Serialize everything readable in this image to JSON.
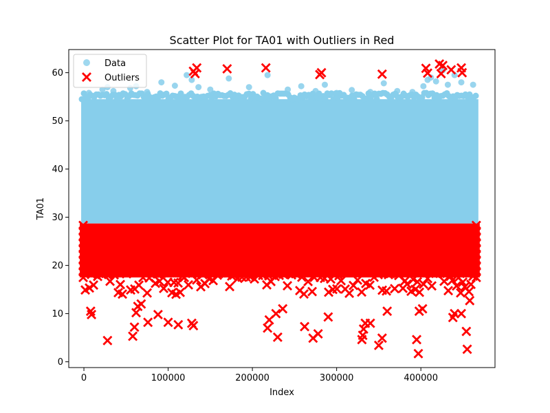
{
  "chart_data": {
    "type": "scatter",
    "title": "Scatter Plot for TA01 with Outliers in Red",
    "xlabel": "Index",
    "ylabel": "TA01",
    "xlim": [
      -18000,
      488000
    ],
    "ylim": [
      -1.2,
      64.8
    ],
    "x_ticks": [
      0,
      100000,
      200000,
      300000,
      400000
    ],
    "x_tick_labels": [
      "0",
      "100000",
      "200000",
      "300000",
      "400000"
    ],
    "y_ticks": [
      0,
      10,
      20,
      30,
      40,
      50,
      60
    ],
    "y_tick_labels": [
      "0",
      "10",
      "20",
      "30",
      "40",
      "50",
      "60"
    ],
    "grid": false,
    "legend_position": "upper-left",
    "series": [
      {
        "name": "Data",
        "marker": "circle",
        "color": "#87CEEB",
        "x_range": [
          0,
          465000
        ],
        "band": [
          28.7,
          54.5
        ],
        "sparse_points": [
          [
            6000,
            55.8
          ],
          [
            22000,
            56.5
          ],
          [
            28000,
            57.0
          ],
          [
            35000,
            56.2
          ],
          [
            55000,
            56.8
          ],
          [
            62000,
            57.2
          ],
          [
            75000,
            56.0
          ],
          [
            92000,
            58.0
          ],
          [
            108000,
            57.3
          ],
          [
            122000,
            59.5
          ],
          [
            128000,
            58.5
          ],
          [
            136000,
            57.0
          ],
          [
            150000,
            56.5
          ],
          [
            172000,
            58.8
          ],
          [
            196000,
            57.0
          ],
          [
            218000,
            59.5
          ],
          [
            242000,
            56.5
          ],
          [
            258000,
            57.2
          ],
          [
            275000,
            56.2
          ],
          [
            286000,
            57.5
          ],
          [
            300000,
            55.8
          ],
          [
            318000,
            56.4
          ],
          [
            340000,
            56.0
          ],
          [
            356000,
            57.8
          ],
          [
            372000,
            56.2
          ],
          [
            390000,
            56.0
          ],
          [
            403000,
            57.2
          ],
          [
            408000,
            58.5
          ],
          [
            412000,
            59.0
          ],
          [
            418000,
            58.2
          ],
          [
            426000,
            60.5
          ],
          [
            432000,
            57.5
          ],
          [
            440000,
            59.5
          ],
          [
            448000,
            58.0
          ],
          [
            462000,
            57.5
          ]
        ]
      },
      {
        "name": "Outliers",
        "marker": "x",
        "color": "#FF0000",
        "x_range": [
          0,
          465000
        ],
        "band": [
          13.5,
          28.7
        ],
        "sparse_points": [
          [
            8000,
            10.5
          ],
          [
            9000,
            9.8
          ],
          [
            28000,
            4.4
          ],
          [
            58000,
            5.3
          ],
          [
            60000,
            7.2
          ],
          [
            62000,
            10.2
          ],
          [
            64000,
            11.5
          ],
          [
            68000,
            12.0
          ],
          [
            76000,
            8.2
          ],
          [
            88000,
            9.8
          ],
          [
            100000,
            8.2
          ],
          [
            112000,
            7.7
          ],
          [
            128000,
            8.0
          ],
          [
            130000,
            7.5
          ],
          [
            218000,
            7.0
          ],
          [
            220000,
            8.7
          ],
          [
            228000,
            10.0
          ],
          [
            230000,
            5.1
          ],
          [
            236000,
            11.0
          ],
          [
            262000,
            7.3
          ],
          [
            272000,
            4.9
          ],
          [
            278000,
            5.8
          ],
          [
            290000,
            9.3
          ],
          [
            330000,
            4.6
          ],
          [
            331000,
            5.5
          ],
          [
            332000,
            6.8
          ],
          [
            334000,
            8.0
          ],
          [
            340000,
            8.0
          ],
          [
            350000,
            3.4
          ],
          [
            354000,
            4.9
          ],
          [
            360000,
            10.5
          ],
          [
            395000,
            4.6
          ],
          [
            397000,
            1.7
          ],
          [
            398000,
            10.5
          ],
          [
            402000,
            11.0
          ],
          [
            438000,
            9.2
          ],
          [
            440000,
            10.0
          ],
          [
            448000,
            10.0
          ],
          [
            454000,
            6.3
          ],
          [
            455000,
            2.6
          ],
          [
            458000,
            12.7
          ],
          [
            130000,
            60.3
          ],
          [
            132000,
            59.8
          ],
          [
            134000,
            61.0
          ],
          [
            170000,
            60.8
          ],
          [
            216000,
            61.0
          ],
          [
            280000,
            59.6
          ],
          [
            282000,
            60.0
          ],
          [
            354000,
            59.7
          ],
          [
            406000,
            60.9
          ],
          [
            408000,
            59.9
          ],
          [
            422000,
            61.8
          ],
          [
            424000,
            59.8
          ],
          [
            426000,
            61.5
          ],
          [
            436000,
            60.6
          ],
          [
            448000,
            61.0
          ],
          [
            449000,
            60.0
          ]
        ]
      }
    ]
  }
}
